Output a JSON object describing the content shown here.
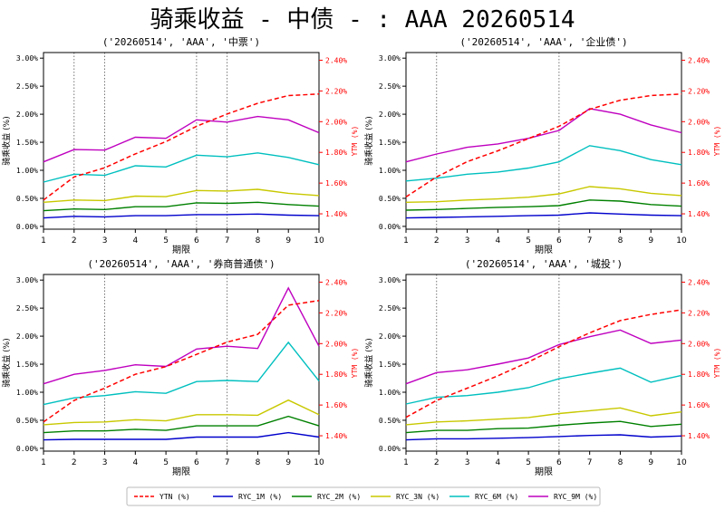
{
  "figure_title": "骑乘收益 - 中债 - : AAA 20260514",
  "legend": {
    "position": "bottom",
    "entries": [
      {
        "label": "YTN (%)",
        "color": "#ff0000",
        "dash": true
      },
      {
        "label": "RYC_1M (%)",
        "color": "#0000cc",
        "dash": false
      },
      {
        "label": "RYC_2M (%)",
        "color": "#008000",
        "dash": false
      },
      {
        "label": "RYC_3N (%)",
        "color": "#c8c800",
        "dash": false
      },
      {
        "label": "RYC_6M (%)",
        "color": "#00bfbf",
        "dash": false
      },
      {
        "label": "RYC_9M (%)",
        "color": "#bf00bf",
        "dash": false
      }
    ]
  },
  "chart_data": [
    {
      "type": "line",
      "title": "('20260514', 'AAA', '中票')",
      "xlabel": "期限",
      "ylabel": "骑乘收益 (%)",
      "y2label": "YTM (%)",
      "x": [
        1,
        2,
        3,
        4,
        5,
        6,
        7,
        8,
        9,
        10
      ],
      "xticks": [
        "1",
        "2",
        "3",
        "4",
        "5",
        "6",
        "7",
        "8",
        "9",
        "10"
      ],
      "ylim": [
        -0.0005,
        0.031
      ],
      "yticks": [
        "0.00%",
        "0.50%",
        "1.00%",
        "1.50%",
        "2.00%",
        "2.50%",
        "3.00%"
      ],
      "y2lim": [
        1.3,
        2.45
      ],
      "y2ticks": [
        "1.40%",
        "1.60%",
        "1.80%",
        "2.00%",
        "2.20%",
        "2.40%"
      ],
      "grid_x": [
        2,
        3,
        6,
        7
      ],
      "series": [
        {
          "key": "RYC_1M",
          "values": [
            0.0015,
            0.0018,
            0.0017,
            0.0019,
            0.0019,
            0.0021,
            0.0021,
            0.0022,
            0.002,
            0.0019
          ]
        },
        {
          "key": "RYC_2M",
          "values": [
            0.0028,
            0.0031,
            0.003,
            0.0035,
            0.0035,
            0.0042,
            0.0041,
            0.0043,
            0.0039,
            0.0036
          ]
        },
        {
          "key": "RYC_3N",
          "values": [
            0.0043,
            0.0047,
            0.0046,
            0.0054,
            0.0053,
            0.0064,
            0.0063,
            0.0066,
            0.0059,
            0.0055
          ]
        },
        {
          "key": "RYC_6M",
          "values": [
            0.0079,
            0.0093,
            0.0091,
            0.0108,
            0.0106,
            0.0127,
            0.0124,
            0.0131,
            0.0123,
            0.011
          ]
        },
        {
          "key": "RYC_9M",
          "values": [
            0.0115,
            0.0137,
            0.0136,
            0.0159,
            0.0157,
            0.019,
            0.0186,
            0.0196,
            0.019,
            0.0167
          ]
        }
      ],
      "ytm": {
        "key": "YTN",
        "values": [
          1.49,
          1.64,
          1.7,
          1.79,
          1.87,
          1.97,
          2.05,
          2.12,
          2.17,
          2.18
        ]
      }
    },
    {
      "type": "line",
      "title": "('20260514', 'AAA', '企业债')",
      "xlabel": "期限",
      "ylabel": "骑乘收益 (%)",
      "y2label": "YTM (%)",
      "x": [
        1,
        2,
        3,
        4,
        5,
        6,
        7,
        8,
        9,
        10
      ],
      "xticks": [
        "1",
        "2",
        "3",
        "4",
        "5",
        "6",
        "7",
        "8",
        "9",
        "10"
      ],
      "ylim": [
        -0.0005,
        0.031
      ],
      "yticks": [
        "0.00%",
        "0.50%",
        "1.00%",
        "1.50%",
        "2.00%",
        "2.50%",
        "3.00%"
      ],
      "y2lim": [
        1.3,
        2.45
      ],
      "y2ticks": [
        "1.40%",
        "1.60%",
        "1.80%",
        "2.00%",
        "2.20%",
        "2.40%"
      ],
      "grid_x": [
        2,
        6
      ],
      "series": [
        {
          "key": "RYC_1M",
          "values": [
            0.0015,
            0.0016,
            0.0017,
            0.0018,
            0.0019,
            0.002,
            0.0024,
            0.0022,
            0.002,
            0.0019
          ]
        },
        {
          "key": "RYC_2M",
          "values": [
            0.0029,
            0.003,
            0.0032,
            0.0034,
            0.0035,
            0.0037,
            0.0047,
            0.0045,
            0.0039,
            0.0036
          ]
        },
        {
          "key": "RYC_3N",
          "values": [
            0.0043,
            0.0044,
            0.0047,
            0.0049,
            0.0052,
            0.0058,
            0.0071,
            0.0067,
            0.0059,
            0.0055
          ]
        },
        {
          "key": "RYC_6M",
          "values": [
            0.0081,
            0.0086,
            0.0093,
            0.0097,
            0.0104,
            0.0115,
            0.0144,
            0.0135,
            0.0119,
            0.011
          ]
        },
        {
          "key": "RYC_9M",
          "values": [
            0.0115,
            0.0129,
            0.0141,
            0.0147,
            0.0157,
            0.0171,
            0.021,
            0.02,
            0.0181,
            0.0167
          ]
        }
      ],
      "ytm": {
        "key": "YTN",
        "values": [
          1.51,
          1.64,
          1.74,
          1.81,
          1.89,
          1.97,
          2.08,
          2.14,
          2.17,
          2.18
        ]
      }
    },
    {
      "type": "line",
      "title": "('20260514', 'AAA', '券商普通债')",
      "xlabel": "期限",
      "ylabel": "骑乘收益 (%)",
      "y2label": "YTM (%)",
      "x": [
        1,
        2,
        3,
        4,
        5,
        6,
        7,
        8,
        9,
        10
      ],
      "xticks": [
        "1",
        "2",
        "3",
        "4",
        "5",
        "6",
        "7",
        "8",
        "9",
        "10"
      ],
      "ylim": [
        -0.0005,
        0.031
      ],
      "yticks": [
        "0.00%",
        "0.50%",
        "1.00%",
        "1.50%",
        "2.00%",
        "2.50%",
        "3.00%"
      ],
      "y2lim": [
        1.3,
        2.45
      ],
      "y2ticks": [
        "1.40%",
        "1.60%",
        "1.80%",
        "2.00%",
        "2.20%",
        "2.40%"
      ],
      "grid_x": [
        3,
        7
      ],
      "series": [
        {
          "key": "RYC_1M",
          "values": [
            0.0015,
            0.0016,
            0.0016,
            0.0016,
            0.0016,
            0.002,
            0.002,
            0.002,
            0.0028,
            0.002
          ]
        },
        {
          "key": "RYC_2M",
          "values": [
            0.0028,
            0.0031,
            0.0031,
            0.0034,
            0.0032,
            0.004,
            0.004,
            0.004,
            0.0057,
            0.004
          ]
        },
        {
          "key": "RYC_3N",
          "values": [
            0.0042,
            0.0046,
            0.0047,
            0.0051,
            0.0049,
            0.006,
            0.006,
            0.0059,
            0.0086,
            0.006
          ]
        },
        {
          "key": "RYC_6M",
          "values": [
            0.0078,
            0.009,
            0.0094,
            0.0101,
            0.0098,
            0.0119,
            0.0121,
            0.0119,
            0.0189,
            0.012
          ]
        },
        {
          "key": "RYC_9M",
          "values": [
            0.0115,
            0.0132,
            0.0139,
            0.0149,
            0.0146,
            0.0177,
            0.0182,
            0.0178,
            0.0286,
            0.0182
          ]
        }
      ],
      "ytm": {
        "key": "YTN",
        "values": [
          1.49,
          1.63,
          1.71,
          1.8,
          1.85,
          1.93,
          2.01,
          2.06,
          2.25,
          2.28
        ]
      }
    },
    {
      "type": "line",
      "title": "('20260514', 'AAA', '城投')",
      "xlabel": "期限",
      "ylabel": "骑乘收益 (%)",
      "y2label": "YTM (%)",
      "x": [
        1,
        2,
        3,
        4,
        5,
        6,
        7,
        8,
        9,
        10
      ],
      "xticks": [
        "1",
        "2",
        "3",
        "4",
        "5",
        "6",
        "7",
        "8",
        "9",
        "10"
      ],
      "ylim": [
        -0.0005,
        0.031
      ],
      "yticks": [
        "0.00%",
        "0.50%",
        "1.00%",
        "1.50%",
        "2.00%",
        "2.50%",
        "3.00%"
      ],
      "y2lim": [
        1.3,
        2.45
      ],
      "y2ticks": [
        "1.40%",
        "1.60%",
        "1.80%",
        "2.00%",
        "2.20%",
        "2.40%"
      ],
      "grid_x": [
        2,
        6
      ],
      "series": [
        {
          "key": "RYC_1M",
          "values": [
            0.0015,
            0.0017,
            0.0017,
            0.0018,
            0.0019,
            0.0021,
            0.0023,
            0.0024,
            0.002,
            0.0022
          ]
        },
        {
          "key": "RYC_2M",
          "values": [
            0.0028,
            0.0032,
            0.0032,
            0.0035,
            0.0036,
            0.0041,
            0.0045,
            0.0048,
            0.0039,
            0.0043
          ]
        },
        {
          "key": "RYC_3N",
          "values": [
            0.0042,
            0.0047,
            0.0049,
            0.0052,
            0.0055,
            0.0062,
            0.0067,
            0.0072,
            0.0058,
            0.0065
          ]
        },
        {
          "key": "RYC_6M",
          "values": [
            0.0079,
            0.0091,
            0.0094,
            0.01,
            0.0108,
            0.0124,
            0.0134,
            0.0143,
            0.0118,
            0.013
          ]
        },
        {
          "key": "RYC_9M",
          "values": [
            0.0115,
            0.0135,
            0.014,
            0.015,
            0.0161,
            0.0185,
            0.0199,
            0.0211,
            0.0187,
            0.0193
          ]
        }
      ],
      "ytm": {
        "key": "YTN",
        "values": [
          1.52,
          1.63,
          1.71,
          1.79,
          1.88,
          1.98,
          2.07,
          2.15,
          2.19,
          2.22
        ]
      }
    }
  ]
}
